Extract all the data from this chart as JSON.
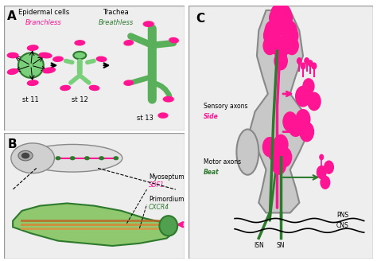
{
  "bg_color": "#f0f0f0",
  "panel_bg": "#e8e8e8",
  "white": "#ffffff",
  "pink": "#FF1493",
  "pink_light": "#FFB6C1",
  "green_dark": "#2d7a2d",
  "green_med": "#3a9a3a",
  "green_light": "#90c090",
  "black": "#000000",
  "gray": "#aaaaaa",
  "title_A": "A",
  "title_B": "B",
  "title_C": "C",
  "label_epidermal": "Epidermal cells",
  "label_branchless": "Branchless",
  "label_trachea": "Trachea",
  "label_breathless": "Breathless",
  "label_st11": "st 11",
  "label_st12": "st 12",
  "label_st13": "st 13",
  "label_myoseptum": "Myoseptum",
  "label_sdf1": "SDF1",
  "label_primordium": "Primordium",
  "label_cxcr4": "CXCR4",
  "label_sensory": "Sensory axons",
  "label_side": "Side",
  "label_motor": "Motor axons",
  "label_beat": "Beat",
  "label_pns": "PNS",
  "label_cns": "CNS",
  "label_isn": "ISN",
  "label_sn": "SN"
}
